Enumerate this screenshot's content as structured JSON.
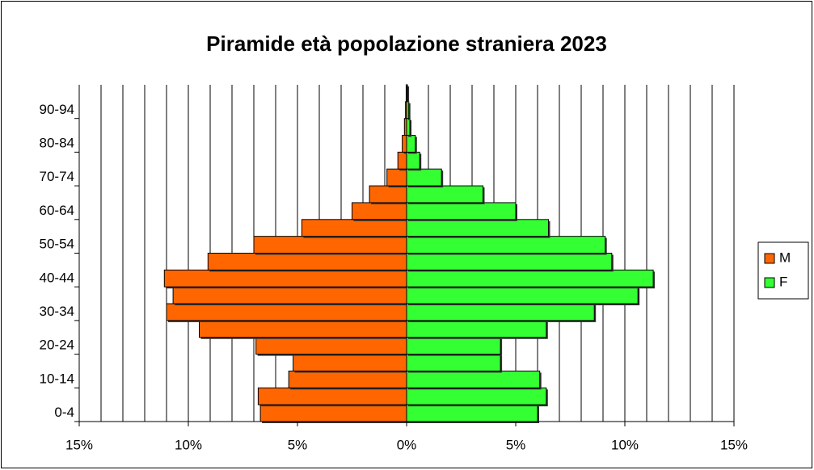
{
  "chart_data": {
    "type": "bar",
    "orientation": "horizontal",
    "stacked": false,
    "title": "Piramide età popolazione straniera 2023",
    "categories": [
      "0-4",
      null,
      "10-14",
      null,
      "20-24",
      null,
      "30-34",
      null,
      "40-44",
      null,
      "50-54",
      null,
      "60-64",
      null,
      "70-74",
      null,
      "80-84",
      null,
      "90-94",
      null
    ],
    "series": [
      {
        "name": "M",
        "color": "#ff6600",
        "values": [
          -6.7,
          -6.8,
          -5.4,
          -5.2,
          -6.9,
          -9.5,
          -11.0,
          -10.7,
          -11.1,
          -9.1,
          -7.0,
          -4.8,
          -2.5,
          -1.7,
          -0.9,
          -0.4,
          -0.2,
          -0.1,
          -0.05,
          -0.02
        ]
      },
      {
        "name": "F",
        "color": "#33ff33",
        "values": [
          6.0,
          6.4,
          6.1,
          4.3,
          4.3,
          6.4,
          8.6,
          10.6,
          11.3,
          9.4,
          9.1,
          6.5,
          5.0,
          3.5,
          1.6,
          0.6,
          0.4,
          0.15,
          0.1,
          0.04
        ]
      }
    ],
    "xlim": [
      -15,
      15
    ],
    "xticks": [
      {
        "value": -15,
        "label": "15%"
      },
      {
        "value": -10,
        "label": "10%"
      },
      {
        "value": -5,
        "label": "5%"
      },
      {
        "value": 0,
        "label": "0%"
      },
      {
        "value": 5,
        "label": "5%"
      },
      {
        "value": 10,
        "label": "10%"
      },
      {
        "value": 15,
        "label": "15%"
      }
    ],
    "xgrid": [
      -15,
      -14,
      -13,
      -12,
      -11,
      -10,
      -9,
      -8,
      -7,
      -6,
      -5,
      -4,
      -3,
      -2,
      -1,
      0,
      1,
      2,
      3,
      4,
      5,
      6,
      7,
      8,
      9,
      10,
      11,
      12,
      13,
      14,
      15
    ],
    "legend": "right"
  }
}
